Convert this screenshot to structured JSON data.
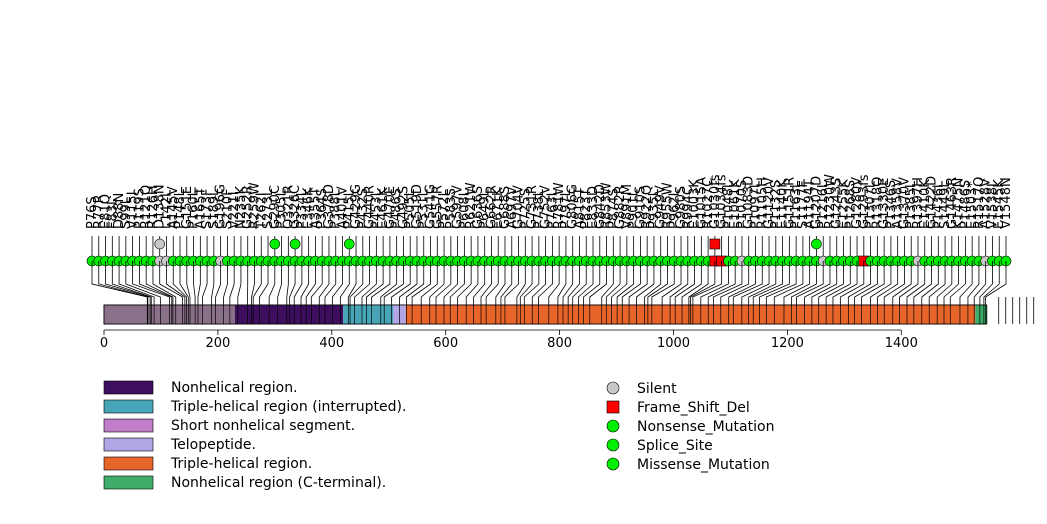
{
  "chart_data": {
    "type": "lollipop",
    "title": "",
    "xlabel": "",
    "ylabel": "",
    "xlim": [
      0,
      1600
    ],
    "x_ticks": [
      0,
      200,
      400,
      600,
      800,
      1000,
      1200,
      1400
    ],
    "protein_length": 1550,
    "domains": [
      {
        "name": "Nonhelical region.",
        "start": 0,
        "end": 420,
        "color": "#3e0f5e"
      },
      {
        "name": "Triple-helical region (interrupted).",
        "start": 420,
        "end": 508,
        "color": "#48a5b7"
      },
      {
        "name": "Short nonhelical segment.",
        "start": 508,
        "end": 518,
        "color": "#c07ec8"
      },
      {
        "name": "Telopeptide.",
        "start": 508,
        "end": 530,
        "color": "#b3a6e6"
      },
      {
        "name": "Triple-helical region.",
        "start": 530,
        "end": 1530,
        "color": "#e8652a"
      },
      {
        "name": "Nonhelical region (C-terminal).",
        "start": 1530,
        "end": 1550,
        "color": "#3fad6a"
      }
    ],
    "overlay_region": {
      "start": 0,
      "end": 230,
      "color": "#8a7089"
    },
    "legend_types": [
      {
        "name": "Silent",
        "color": "#c8c8c8",
        "shape": "circle"
      },
      {
        "name": "Frame_Shift_Del",
        "color": "#ff0000",
        "shape": "square"
      },
      {
        "name": "Nonsense_Mutation",
        "color": "#00ee00",
        "shape": "circle"
      },
      {
        "name": "Splice_Site",
        "color": "#00ee00",
        "shape": "circle"
      },
      {
        "name": "Missense_Mutation",
        "color": "#00ee00",
        "shape": "circle"
      }
    ],
    "mutations": [
      {
        "label": "P76S",
        "pos": 76,
        "type": "Missense_Mutation"
      },
      {
        "label": "R77R",
        "pos": 77,
        "type": "Missense_Mutation"
      },
      {
        "label": "E81Q",
        "pos": 81,
        "type": "Missense_Mutation"
      },
      {
        "label": "F83L",
        "pos": 83,
        "type": "Missense_Mutation"
      },
      {
        "label": "D88N",
        "pos": 88,
        "type": "Missense_Mutation"
      },
      {
        "label": "S99L",
        "pos": 99,
        "type": "Missense_Mutation"
      },
      {
        "label": "V115I",
        "pos": 115,
        "type": "Missense_Mutation"
      },
      {
        "label": "P119S",
        "pos": 119,
        "type": "Missense_Mutation"
      },
      {
        "label": "R121Q",
        "pos": 121,
        "type": "Missense_Mutation"
      },
      {
        "label": "R126H",
        "pos": 126,
        "type": "Missense_Mutation"
      },
      {
        "label": "D138N",
        "pos": 138,
        "type": "Silent"
      },
      {
        "label": "L142L",
        "pos": 142,
        "type": "Silent"
      },
      {
        "label": "A145V",
        "pos": 145,
        "type": "Missense_Mutation"
      },
      {
        "label": "P148L",
        "pos": 148,
        "type": "Missense_Mutation"
      },
      {
        "label": "G151E",
        "pos": 151,
        "type": "Missense_Mutation"
      },
      {
        "label": "P160L",
        "pos": 160,
        "type": "Missense_Mutation"
      },
      {
        "label": "A165T",
        "pos": 165,
        "type": "Missense_Mutation"
      },
      {
        "label": "S173F",
        "pos": 173,
        "type": "Missense_Mutation"
      },
      {
        "label": "S189L",
        "pos": 189,
        "type": "Missense_Mutation"
      },
      {
        "label": "G196G",
        "pos": 196,
        "type": "Silent"
      },
      {
        "label": "S210F",
        "pos": 210,
        "type": "Missense_Mutation"
      },
      {
        "label": "V221I",
        "pos": 221,
        "type": "Missense_Mutation"
      },
      {
        "label": "N235K",
        "pos": 235,
        "type": "Missense_Mutation"
      },
      {
        "label": "G252R",
        "pos": 252,
        "type": "Missense_Mutation"
      },
      {
        "label": "R259W",
        "pos": 259,
        "type": "Missense_Mutation"
      },
      {
        "label": "T262I",
        "pos": 262,
        "type": "Missense_Mutation"
      },
      {
        "label": "S273L",
        "pos": 273,
        "type": "Missense_Mutation"
      },
      {
        "label": "G290C",
        "pos": 290,
        "type": "Missense_Mutation"
      },
      {
        "label": "P305L",
        "pos": 305,
        "type": "Missense_Mutation"
      },
      {
        "label": "Q321R",
        "pos": 321,
        "type": "Missense_Mutation"
      },
      {
        "label": "G326C",
        "pos": 326,
        "type": "Missense_Mutation"
      },
      {
        "label": "P334L",
        "pos": 334,
        "type": "Missense_Mutation"
      },
      {
        "label": "E346K",
        "pos": 346,
        "type": "Missense_Mutation"
      },
      {
        "label": "A355T",
        "pos": 355,
        "type": "Missense_Mutation"
      },
      {
        "label": "P364S",
        "pos": 364,
        "type": "Missense_Mutation"
      },
      {
        "label": "G378D",
        "pos": 378,
        "type": "Missense_Mutation"
      },
      {
        "label": "P388L",
        "pos": 388,
        "type": "Missense_Mutation"
      },
      {
        "label": "A401V",
        "pos": 401,
        "type": "Missense_Mutation"
      },
      {
        "label": "P415L",
        "pos": 415,
        "type": "Missense_Mutation"
      },
      {
        "label": "G429G",
        "pos": 429,
        "type": "Missense_Mutation"
      },
      {
        "label": "P432S",
        "pos": 432,
        "type": "Missense_Mutation"
      },
      {
        "label": "G440R",
        "pos": 440,
        "type": "Missense_Mutation"
      },
      {
        "label": "P453L",
        "pos": 453,
        "type": "Missense_Mutation"
      },
      {
        "label": "E461K",
        "pos": 461,
        "type": "Missense_Mutation"
      },
      {
        "label": "G470E",
        "pos": 470,
        "type": "Missense_Mutation"
      },
      {
        "label": "P486S",
        "pos": 486,
        "type": "Missense_Mutation"
      },
      {
        "label": "G492S",
        "pos": 492,
        "type": "Missense_Mutation"
      },
      {
        "label": "P505L",
        "pos": 505,
        "type": "Missense_Mutation"
      },
      {
        "label": "G519D",
        "pos": 519,
        "type": "Missense_Mutation"
      },
      {
        "label": "P531L",
        "pos": 531,
        "type": "Missense_Mutation"
      },
      {
        "label": "G541G",
        "pos": 541,
        "type": "Missense_Mutation"
      },
      {
        "label": "G557R",
        "pos": 557,
        "type": "Missense_Mutation"
      },
      {
        "label": "P572L",
        "pos": 572,
        "type": "Missense_Mutation"
      },
      {
        "label": "P583S",
        "pos": 583,
        "type": "Missense_Mutation"
      },
      {
        "label": "G597V",
        "pos": 597,
        "type": "Missense_Mutation"
      },
      {
        "label": "P608L",
        "pos": 608,
        "type": "Missense_Mutation"
      },
      {
        "label": "R621W",
        "pos": 621,
        "type": "Missense_Mutation"
      },
      {
        "label": "G636S",
        "pos": 636,
        "type": "Missense_Mutation"
      },
      {
        "label": "P649L",
        "pos": 649,
        "type": "Missense_Mutation"
      },
      {
        "label": "G662R",
        "pos": 662,
        "type": "Missense_Mutation"
      },
      {
        "label": "E671K",
        "pos": 671,
        "type": "Missense_Mutation"
      },
      {
        "label": "G688S",
        "pos": 688,
        "type": "Missense_Mutation"
      },
      {
        "label": "A697V",
        "pos": 697,
        "type": "Missense_Mutation"
      },
      {
        "label": "G704V",
        "pos": 704,
        "type": "Missense_Mutation"
      },
      {
        "label": "P725S",
        "pos": 725,
        "type": "Missense_Mutation"
      },
      {
        "label": "G731R",
        "pos": 731,
        "type": "Missense_Mutation"
      },
      {
        "label": "P738L",
        "pos": 738,
        "type": "Missense_Mutation"
      },
      {
        "label": "G752V",
        "pos": 752,
        "type": "Missense_Mutation"
      },
      {
        "label": "P763L",
        "pos": 763,
        "type": "Missense_Mutation"
      },
      {
        "label": "R781W",
        "pos": 781,
        "type": "Missense_Mutation"
      },
      {
        "label": "P797L",
        "pos": 797,
        "type": "Missense_Mutation"
      },
      {
        "label": "G806G",
        "pos": 806,
        "type": "Missense_Mutation"
      },
      {
        "label": "A815T",
        "pos": 815,
        "type": "Missense_Mutation"
      },
      {
        "label": "P823T",
        "pos": 823,
        "type": "Missense_Mutation"
      },
      {
        "label": "E833D",
        "pos": 833,
        "type": "Missense_Mutation"
      },
      {
        "label": "G842D",
        "pos": 842,
        "type": "Missense_Mutation"
      },
      {
        "label": "R853W",
        "pos": 853,
        "type": "Missense_Mutation"
      },
      {
        "label": "P874S",
        "pos": 874,
        "type": "Missense_Mutation"
      },
      {
        "label": "G882R",
        "pos": 882,
        "type": "Missense_Mutation"
      },
      {
        "label": "V891M",
        "pos": 891,
        "type": "Missense_Mutation"
      },
      {
        "label": "P901L",
        "pos": 901,
        "type": "Missense_Mutation"
      },
      {
        "label": "G910S",
        "pos": 910,
        "type": "Missense_Mutation"
      },
      {
        "label": "R922Q",
        "pos": 922,
        "type": "Missense_Mutation"
      },
      {
        "label": "P935L",
        "pos": 935,
        "type": "Missense_Mutation"
      },
      {
        "label": "G949V",
        "pos": 949,
        "type": "Missense_Mutation"
      },
      {
        "label": "R955W",
        "pos": 955,
        "type": "Missense_Mutation"
      },
      {
        "label": "P962L",
        "pos": 962,
        "type": "Missense_Mutation"
      },
      {
        "label": "G980S",
        "pos": 980,
        "type": "Missense_Mutation"
      },
      {
        "label": "R994C",
        "pos": 994,
        "type": "Missense_Mutation"
      },
      {
        "label": "E1003K",
        "pos": 1003,
        "type": "Missense_Mutation"
      },
      {
        "label": "G1015A",
        "pos": 1015,
        "type": "Missense_Mutation"
      },
      {
        "label": "R1027C",
        "pos": 1027,
        "type": "Missense_Mutation"
      },
      {
        "label": "G1030fs",
        "pos": 1030,
        "type": "Frame_Shift_Del"
      },
      {
        "label": "G1034fs",
        "pos": 1034,
        "type": "Frame_Shift_Del"
      },
      {
        "label": "P1048L",
        "pos": 1048,
        "type": "Missense_Mutation"
      },
      {
        "label": "E1061K",
        "pos": 1061,
        "type": "Missense_Mutation"
      },
      {
        "label": "P1070S",
        "pos": 1070,
        "type": "Silent"
      },
      {
        "label": "G1083D",
        "pos": 1083,
        "type": "Missense_Mutation"
      },
      {
        "label": "P1097L",
        "pos": 1097,
        "type": "Missense_Mutation"
      },
      {
        "label": "R1105H",
        "pos": 1105,
        "type": "Missense_Mutation"
      },
      {
        "label": "G1120V",
        "pos": 1120,
        "type": "Missense_Mutation"
      },
      {
        "label": "P1132S",
        "pos": 1132,
        "type": "Missense_Mutation"
      },
      {
        "label": "E1140K",
        "pos": 1140,
        "type": "Missense_Mutation"
      },
      {
        "label": "G1151R",
        "pos": 1151,
        "type": "Missense_Mutation"
      },
      {
        "label": "P1163L",
        "pos": 1163,
        "type": "Missense_Mutation"
      },
      {
        "label": "S1177F",
        "pos": 1177,
        "type": "Missense_Mutation"
      },
      {
        "label": "A1194T",
        "pos": 1194,
        "type": "Missense_Mutation"
      },
      {
        "label": "G1207D",
        "pos": 1207,
        "type": "Missense_Mutation"
      },
      {
        "label": "P1216L",
        "pos": 1216,
        "type": "Silent"
      },
      {
        "label": "R1230W",
        "pos": 1230,
        "type": "Missense_Mutation"
      },
      {
        "label": "G1243S",
        "pos": 1243,
        "type": "Missense_Mutation"
      },
      {
        "label": "E1255K",
        "pos": 1255,
        "type": "Missense_Mutation"
      },
      {
        "label": "P1268S",
        "pos": 1268,
        "type": "Missense_Mutation"
      },
      {
        "label": "G1280V",
        "pos": 1280,
        "type": "Missense_Mutation"
      },
      {
        "label": "G1293fs",
        "pos": 1293,
        "type": "Frame_Shift_Del"
      },
      {
        "label": "P1307L",
        "pos": 1307,
        "type": "Missense_Mutation"
      },
      {
        "label": "R1318Q",
        "pos": 1318,
        "type": "Missense_Mutation"
      },
      {
        "label": "G1330E",
        "pos": 1330,
        "type": "Missense_Mutation"
      },
      {
        "label": "P1346S",
        "pos": 1346,
        "type": "Missense_Mutation"
      },
      {
        "label": "A1358V",
        "pos": 1358,
        "type": "Missense_Mutation"
      },
      {
        "label": "G1370V",
        "pos": 1370,
        "type": "Missense_Mutation"
      },
      {
        "label": "P1385L",
        "pos": 1385,
        "type": "Missense_Mutation"
      },
      {
        "label": "R1397H",
        "pos": 1397,
        "type": "Silent"
      },
      {
        "label": "E1410K",
        "pos": 1410,
        "type": "Missense_Mutation"
      },
      {
        "label": "G1422D",
        "pos": 1422,
        "type": "Missense_Mutation"
      },
      {
        "label": "P1436L",
        "pos": 1436,
        "type": "Missense_Mutation"
      },
      {
        "label": "S1449L",
        "pos": 1449,
        "type": "Missense_Mutation"
      },
      {
        "label": "G1463R",
        "pos": 1463,
        "type": "Missense_Mutation"
      },
      {
        "label": "K1475N",
        "pos": 1475,
        "type": "Missense_Mutation"
      },
      {
        "label": "P1486S",
        "pos": 1486,
        "type": "Missense_Mutation"
      },
      {
        "label": "E1503*",
        "pos": 1503,
        "type": "Missense_Mutation"
      },
      {
        "label": "R1517Q",
        "pos": 1517,
        "type": "Missense_Mutation"
      },
      {
        "label": "A1528V",
        "pos": 1528,
        "type": "Silent"
      },
      {
        "label": "V1538I",
        "pos": 1538,
        "type": "Missense_Mutation"
      },
      {
        "label": "E1545K",
        "pos": 1545,
        "type": "Missense_Mutation"
      },
      {
        "label": "V1548N",
        "pos": 1548,
        "type": "Missense_Mutation"
      }
    ],
    "upper_markers": [
      {
        "pos": 138,
        "type": "Silent"
      },
      {
        "pos": 295,
        "type": "Missense_Mutation"
      },
      {
        "pos": 329,
        "type": "Missense_Mutation"
      },
      {
        "pos": 419,
        "type": "Missense_Mutation"
      },
      {
        "pos": 1030,
        "type": "Frame_Shift_Del"
      },
      {
        "pos": 1207,
        "type": "Missense_Mutation"
      }
    ]
  }
}
